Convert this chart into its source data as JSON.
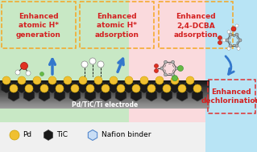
{
  "bg_left_color": "#c8e8c5",
  "bg_mid_color": "#fadadd",
  "bg_right_color": "#b8e4f5",
  "box_edge_color": "#f5a623",
  "box4_edge_color": "#e03030",
  "text_color": "#d42020",
  "pd_color": "#f0c030",
  "pd_edge_color": "#c8a000",
  "tic_color": "#1a1a1a",
  "tic_edge_color": "#444444",
  "nafion_color": "#c8ddf5",
  "nafion_edge_color": "#5588cc",
  "electrode_grad_top": "#111111",
  "electrode_grad_bot": "#888888",
  "electrode_text": "Pd/TiC/Ti electrode",
  "box1_text": "Enhanced\natomic H*\ngeneration",
  "box2_text": "Enhanced\natomic H*\nadsorption",
  "box3_text": "Enhanced\n2,4-DCBA\nadsorption",
  "box4_text": "Enhanced\ndechlorination",
  "legend_pd": "Pd",
  "legend_tic": "TiC",
  "legend_nafion": "Nafion binder",
  "arrow_color": "#3377cc",
  "white": "#ffffff",
  "o_color": "#e03020",
  "cl_color": "#66bb44",
  "gray_atom": "#b0b0b0"
}
